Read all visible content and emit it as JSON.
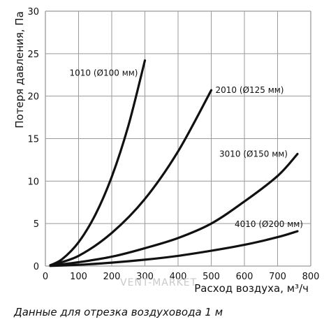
{
  "chart_data": {
    "type": "line",
    "xlabel": "Расход воздуха, м³/ч",
    "ylabel": "Потеря давления, Па",
    "xlim": [
      0,
      800
    ],
    "ylim": [
      0,
      30
    ],
    "x_ticks": [
      "0",
      "100",
      "200",
      "300",
      "400",
      "500",
      "600",
      "700",
      "800"
    ],
    "y_ticks": [
      "0",
      "5",
      "10",
      "15",
      "20",
      "25",
      "30"
    ],
    "grid": true,
    "series": [
      {
        "name": "1010 (Ø100 мм)",
        "x": [
          15,
          50,
          100,
          150,
          200,
          250,
          300
        ],
        "y": [
          0.1,
          0.8,
          2.8,
          6.0,
          10.5,
          16.5,
          24.2
        ]
      },
      {
        "name": "2010 (Ø125 мм)",
        "x": [
          15,
          100,
          200,
          300,
          400,
          500
        ],
        "y": [
          0.1,
          1.2,
          3.9,
          7.9,
          13.5,
          20.7
        ]
      },
      {
        "name": "3010 (Ø150 мм)",
        "x": [
          15,
          100,
          200,
          300,
          400,
          500,
          600,
          700,
          760
        ],
        "y": [
          0.05,
          0.45,
          1.1,
          2.1,
          3.3,
          5.0,
          7.6,
          10.6,
          13.2
        ]
      },
      {
        "name": "4010 (Ø200 мм)",
        "x": [
          15,
          100,
          200,
          300,
          400,
          500,
          600,
          700,
          760
        ],
        "y": [
          0.02,
          0.15,
          0.4,
          0.75,
          1.2,
          1.8,
          2.5,
          3.4,
          4.1
        ]
      }
    ]
  },
  "watermark": "VENT-MARKET",
  "caption": "Данные для отрезка воздуховода 1 м",
  "colors": {
    "line": "#111111",
    "grid": "#9a9a9a"
  }
}
